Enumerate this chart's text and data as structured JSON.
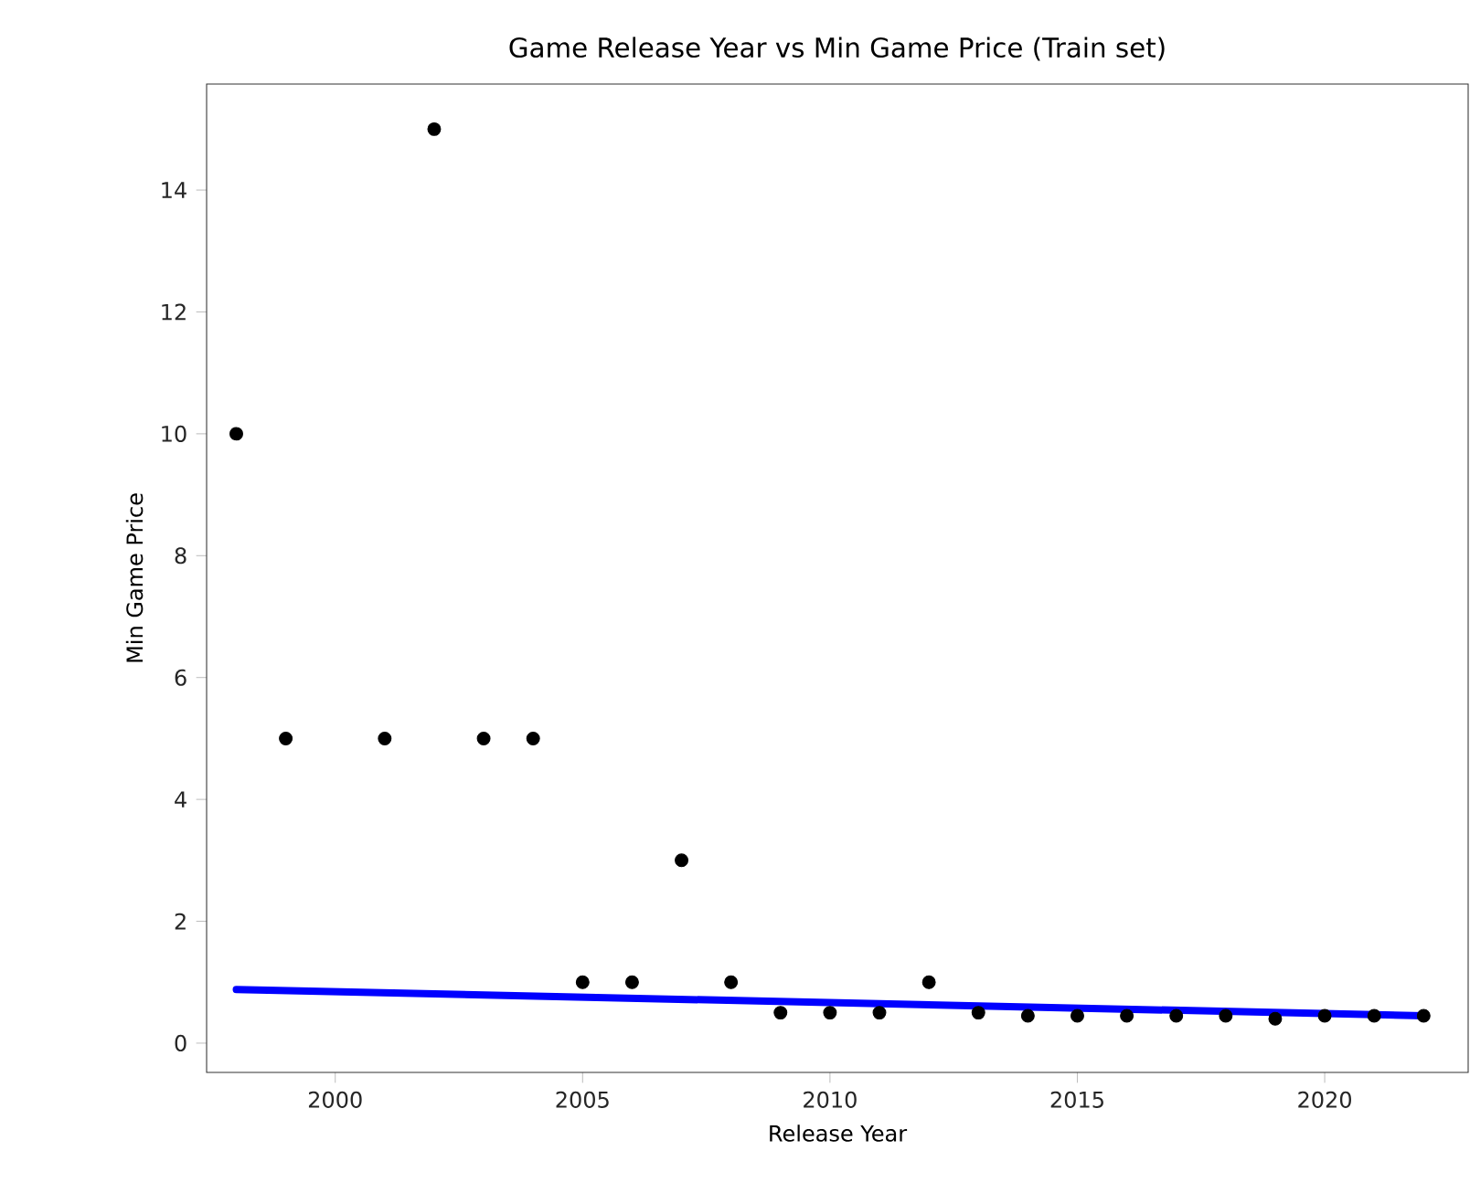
{
  "chart_data": {
    "type": "scatter",
    "title": "Game Release Year vs Min Game Price (Train set)",
    "xlabel": "Release Year",
    "ylabel": "Min Game Price",
    "xlim": [
      1997.4,
      2022.9
    ],
    "ylim": [
      -0.48,
      15.74
    ],
    "xticks": [
      2000,
      2005,
      2010,
      2015,
      2020
    ],
    "yticks": [
      0,
      2,
      4,
      6,
      8,
      10,
      12,
      14
    ],
    "grid": false,
    "series": [
      {
        "marker": "circle",
        "color": "#000000",
        "x": [
          1998,
          1999,
          2001,
          2002,
          2003,
          2004,
          2005,
          2006,
          2007,
          2008,
          2009,
          2010,
          2011,
          2012,
          2013,
          2014,
          2015,
          2016,
          2017,
          2018,
          2019,
          2020,
          2021,
          2022
        ],
        "values": [
          10,
          5,
          5,
          15,
          5,
          5,
          1,
          1,
          3,
          1,
          0.5,
          0.5,
          0.5,
          1,
          0.5,
          0.45,
          0.45,
          0.45,
          0.45,
          0.45,
          0.4,
          0.45,
          0.45,
          0.45
        ]
      },
      {
        "type": "line",
        "marker": "none",
        "color": "#0000ff",
        "x": [
          1998,
          2022
        ],
        "values": [
          0.88,
          0.45
        ]
      }
    ]
  }
}
